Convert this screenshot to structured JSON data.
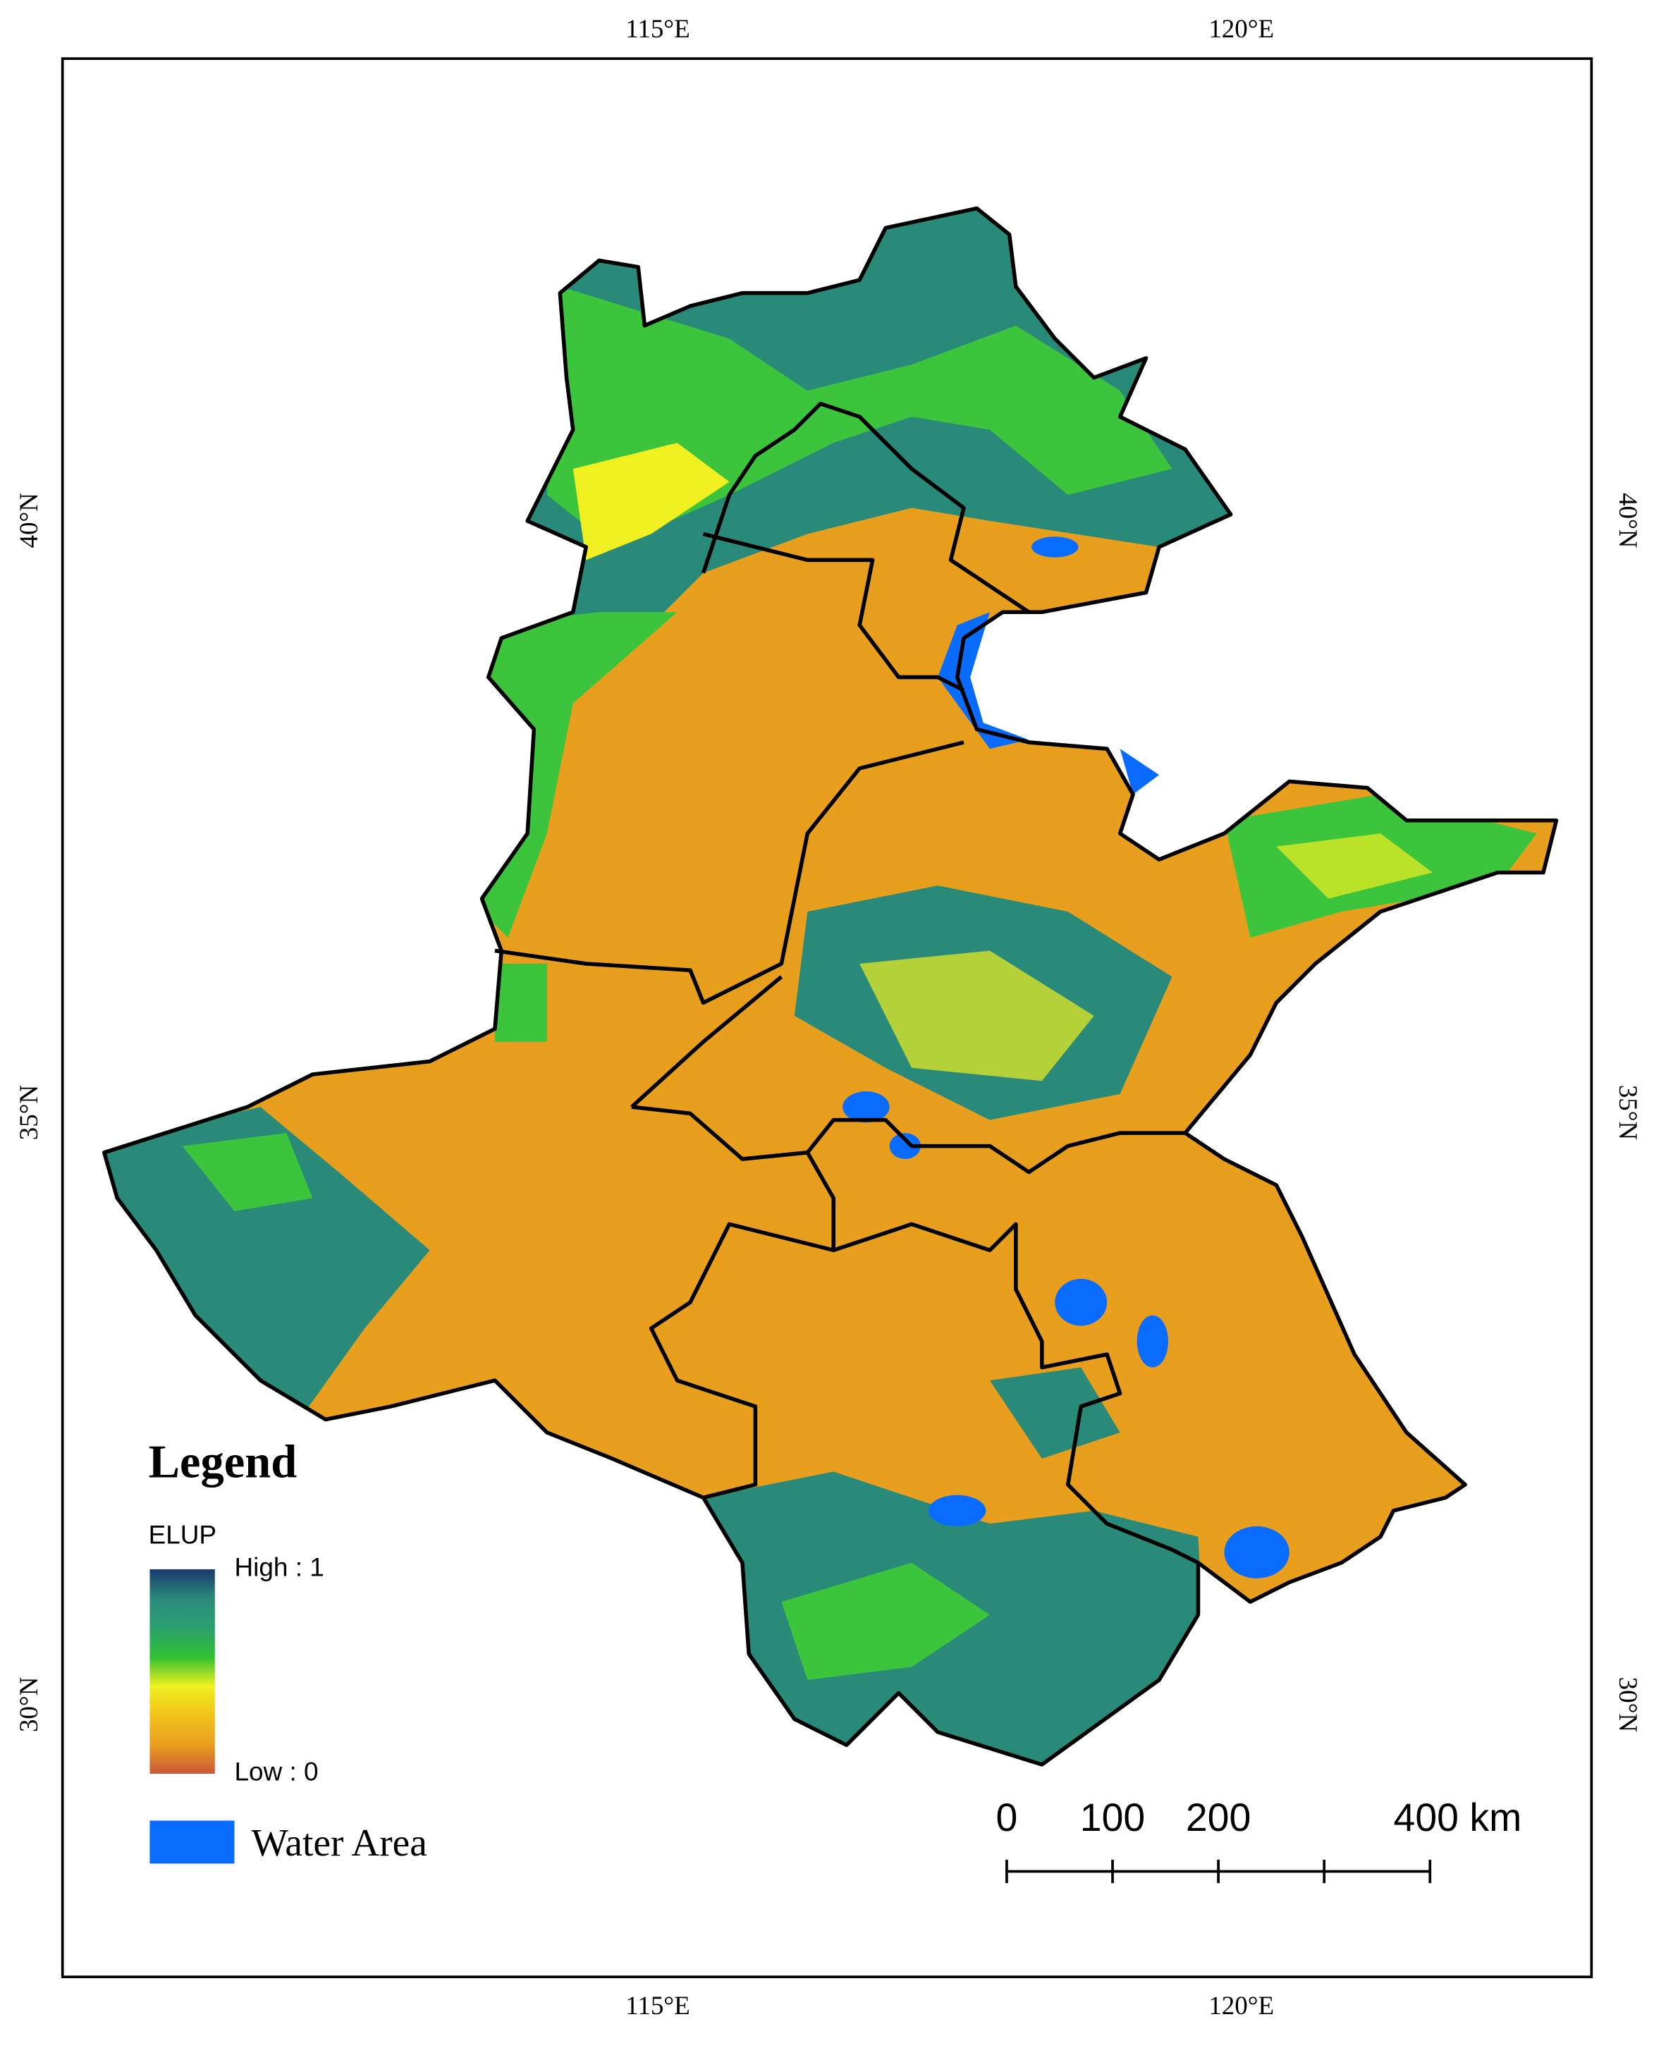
{
  "map": {
    "lonlim": [
      109.9,
      123
    ],
    "latlim": [
      27.7,
      43.9
    ],
    "longitude_ticks": [
      {
        "value": 115,
        "label": "115°E"
      },
      {
        "value": 120,
        "label": "120°E"
      }
    ],
    "latitude_ticks": [
      {
        "value": 40,
        "label": "40°N"
      },
      {
        "value": 35,
        "label": "35°N"
      },
      {
        "value": 30,
        "label": "30°N"
      }
    ],
    "legend": {
      "title": "Legend",
      "ramp_title": "ELUP",
      "ramp_ticks": [
        {
          "value": 1,
          "label": "High : 1"
        },
        {
          "value": 0,
          "label": "Low : 0"
        }
      ],
      "ramp_colors": [
        "#c8583a",
        "#e89f1e",
        "#f2c21c",
        "#f0f020",
        "#30c030",
        "#2aa070",
        "#2a8a7a",
        "#1a3a6e"
      ],
      "water_label": "Water Area",
      "water_color": "#0a6cff"
    },
    "scale_bar": {
      "ticks": [
        0,
        100,
        200,
        {
          "value": 400,
          "label": "400 km"
        }
      ]
    }
  }
}
